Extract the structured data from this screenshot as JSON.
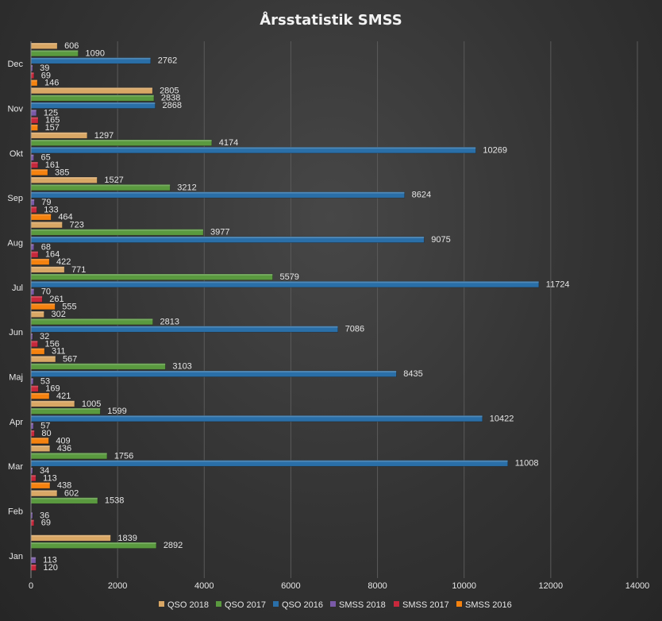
{
  "chart_data": {
    "type": "bar",
    "orientation": "horizontal",
    "title": "Årsstatistik  SMSS",
    "xlabel": "",
    "ylabel": "",
    "xlim": [
      0,
      14000
    ],
    "xticks": [
      0,
      2000,
      4000,
      6000,
      8000,
      10000,
      12000,
      14000
    ],
    "grid": true,
    "legend": "bottom",
    "categories": [
      "Jan",
      "Feb",
      "Mar",
      "Apr",
      "Maj",
      "Jun",
      "Jul",
      "Aug",
      "Sep",
      "Okt",
      "Nov",
      "Dec"
    ],
    "series": [
      {
        "name": "QSO 2018",
        "color": "#d9a765",
        "values": [
          1839,
          602,
          436,
          1005,
          567,
          302,
          771,
          723,
          1527,
          1297,
          2805,
          606
        ]
      },
      {
        "name": "QSO 2017",
        "color": "#5a9a3f",
        "values": [
          2892,
          1538,
          1756,
          1599,
          3103,
          2813,
          5579,
          3977,
          3212,
          4174,
          2838,
          1090
        ]
      },
      {
        "name": "QSO 2016",
        "color": "#2a6fa8",
        "values": [
          null,
          null,
          11008,
          10422,
          8435,
          7086,
          11724,
          9075,
          8624,
          10269,
          2868,
          2762
        ]
      },
      {
        "name": "SMSS 2018",
        "color": "#7a5aa8",
        "values": [
          113,
          36,
          34,
          57,
          53,
          32,
          70,
          68,
          79,
          65,
          125,
          39
        ]
      },
      {
        "name": "SMSS 2017",
        "color": "#c8283c",
        "values": [
          120,
          69,
          113,
          80,
          169,
          156,
          261,
          164,
          133,
          161,
          165,
          69
        ]
      },
      {
        "name": "SMSS 2016",
        "color": "#f5820f",
        "values": [
          null,
          null,
          438,
          409,
          421,
          311,
          555,
          422,
          464,
          385,
          157,
          146
        ]
      }
    ]
  }
}
